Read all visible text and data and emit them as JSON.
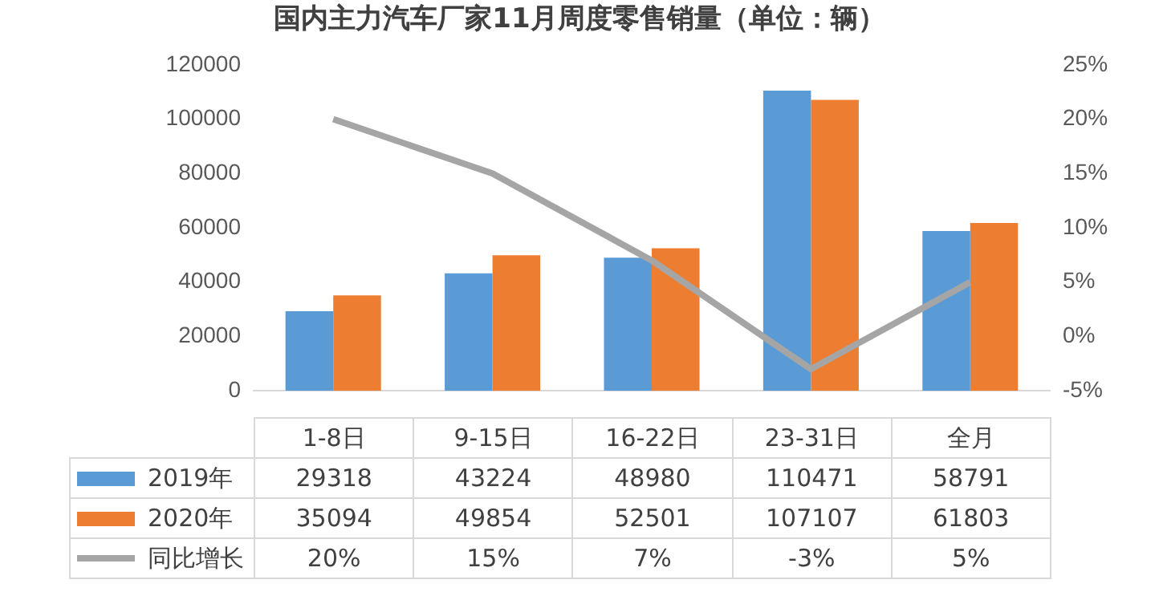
{
  "chart_data": {
    "type": "bar",
    "title": "国内主力汽车厂家11月周度零售销量（单位：辆）",
    "categories": [
      "1-8日",
      "9-15日",
      "16-22日",
      "23-31日",
      "全月"
    ],
    "series": [
      {
        "name": "2019年",
        "color": "#5b9bd5",
        "values": [
          29318,
          43224,
          48980,
          110471,
          58791
        ]
      },
      {
        "name": "2020年",
        "color": "#ed7d31",
        "values": [
          35094,
          49854,
          52501,
          107107,
          61803
        ]
      },
      {
        "name": "同比增长",
        "type": "line",
        "axis": "y2",
        "color": "#a5a5a5",
        "marker": "none",
        "values": [
          20,
          15,
          7,
          -3,
          5
        ],
        "value_labels": [
          "20%",
          "15%",
          "7%",
          "-3%",
          "5%"
        ]
      }
    ],
    "ylim": [
      0,
      120000
    ],
    "yticks": [
      0,
      20000,
      40000,
      60000,
      80000,
      100000,
      120000
    ],
    "y2lim": [
      -5,
      25
    ],
    "y2ticks": [
      {
        "value": -5,
        "label": "-5%"
      },
      {
        "value": 0,
        "label": "0%"
      },
      {
        "value": 5,
        "label": "5%"
      },
      {
        "value": 10,
        "label": "10%"
      },
      {
        "value": 15,
        "label": "15%"
      },
      {
        "value": 20,
        "label": "20%"
      },
      {
        "value": 25,
        "label": "25%"
      }
    ],
    "data_labels": true,
    "grid": false,
    "legend": "bottom left"
  }
}
